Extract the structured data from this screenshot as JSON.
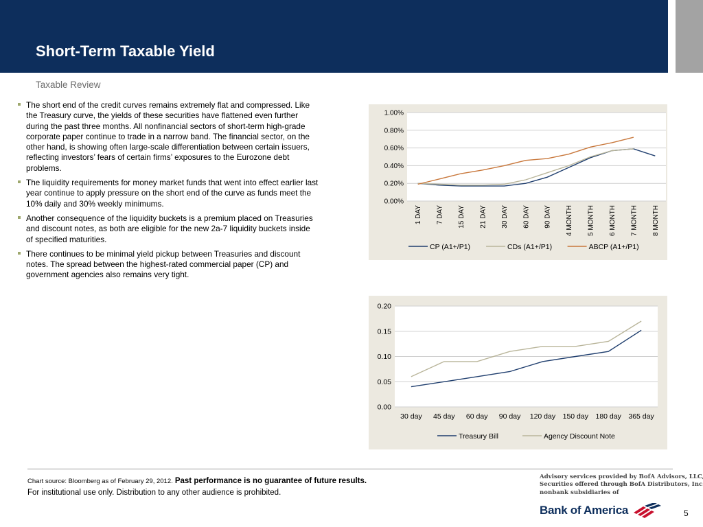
{
  "header": {
    "title": "Short-Term Taxable Yield"
  },
  "subtitle": "Taxable Review",
  "bullets": [
    "The short end of the credit curves remains extremely flat and compressed. Like the Treasury curve, the yields of these securities have flattened even further during the past three months. All nonfinancial sectors of short-term high-grade corporate paper continue to trade in a narrow band. The financial sector, on the other hand, is showing often large-scale differentiation between certain issuers, reflecting investors’ fears of certain firms’ exposures to the Eurozone debt problems.",
    "The liquidity requirements for money market funds that went into effect earlier last year continue to apply pressure on the short end of the curve as funds meet the 10% daily and 30% weekly minimums.",
    "Another consequence of the liquidity buckets is a premium placed on Treasuries and discount notes, as both are eligible for the new 2a-7 liquidity buckets inside of specified maturities.",
    "There continues to be minimal yield pickup between Treasuries and discount notes. The spread between the highest-rated commercial paper (CP) and government agencies also remains very tight."
  ],
  "colors": {
    "header_bg": "#0d2e5c",
    "bullet": "#9ea86d",
    "cp": "#1f3e6e",
    "cds": "#b9b59a",
    "abcp": "#c8773b",
    "panel_bg": "#ece9e0"
  },
  "chart_data": [
    {
      "type": "line",
      "categories": [
        "1 DAY",
        "7 DAY",
        "15 DAY",
        "21 DAY",
        "30 DAY",
        "60 DAY",
        "90 DAY",
        "4 MONTH",
        "5 MONTH",
        "6 MONTH",
        "7 MONTH",
        "8 MONTH"
      ],
      "y_ticks": [
        "0.00%",
        "0.20%",
        "0.40%",
        "0.60%",
        "0.80%",
        "1.00%"
      ],
      "ylim": [
        0,
        1.0
      ],
      "series": [
        {
          "name": "CP (A1+/P1)",
          "color": "#1f3e6e",
          "values": [
            0.2,
            0.18,
            0.17,
            0.17,
            0.17,
            0.2,
            0.27,
            0.38,
            0.49,
            0.57,
            0.59,
            0.51
          ]
        },
        {
          "name": "CDs (A1+/P1)",
          "color": "#b9b59a",
          "values": [
            0.2,
            0.19,
            0.18,
            0.18,
            0.19,
            0.24,
            0.32,
            0.4,
            0.5,
            0.57,
            0.59,
            null
          ]
        },
        {
          "name": "ABCP (A1+/P1)",
          "color": "#c8773b",
          "values": [
            0.19,
            0.25,
            0.31,
            0.35,
            0.4,
            0.46,
            0.48,
            0.53,
            0.61,
            0.66,
            0.72,
            null
          ]
        }
      ],
      "legend": "bottom",
      "grid": true
    },
    {
      "type": "line",
      "categories": [
        "30 day",
        "45 day",
        "60 day",
        "90 day",
        "120 day",
        "150 day",
        "180 day",
        "365 day"
      ],
      "y_ticks": [
        "0.00",
        "0.05",
        "0.10",
        "0.15",
        "0.20"
      ],
      "ylim": [
        0,
        0.2
      ],
      "series": [
        {
          "name": "Treasury Bill",
          "color": "#1f3e6e",
          "values": [
            0.04,
            0.05,
            0.06,
            0.07,
            0.09,
            0.1,
            0.11,
            0.152
          ]
        },
        {
          "name": "Agency Discount Note",
          "color": "#b9b59a",
          "values": [
            0.06,
            0.09,
            0.09,
            0.11,
            0.12,
            0.12,
            0.13,
            0.17
          ]
        }
      ],
      "legend": "bottom",
      "grid": true
    }
  ],
  "footer": {
    "source": "Chart source: Bloomberg as of February 29, 2012.",
    "disclaimer": "Past performance is no guarantee of future results.",
    "use": "For institutional use only. Distribution to any other audience is prohibited."
  },
  "advisory": [
    "Advisory services provided by BofA Advisors, LLC,",
    "Securities offered through BofA Distributors, Inc.,",
    "nonbank subsidiaries of"
  ],
  "logo": {
    "text": "Bank of America"
  },
  "page_number": "5"
}
